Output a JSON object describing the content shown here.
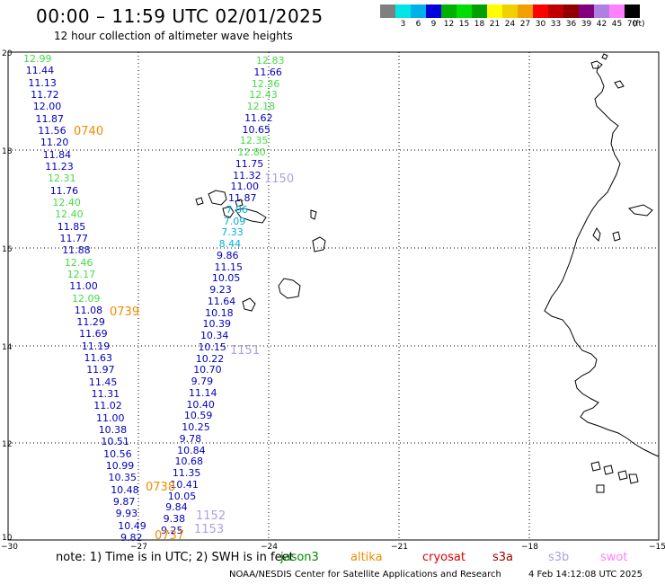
{
  "header": {
    "title": "00:00 – 11:59 UTC 02/01/2025",
    "subtitle": "12 hour collection of altimeter wave heights"
  },
  "colorbar": {
    "colors": [
      "#7f7f7f",
      "#00e5e5",
      "#00b0e8",
      "#0000dd",
      "#00b000",
      "#00dd00",
      "#00a000",
      "#ffff00",
      "#f0d000",
      "#f0a000",
      "#ff0000",
      "#c00000",
      "#900000",
      "#800080",
      "#b080e0",
      "#ff80ff",
      "#000000"
    ],
    "labels": [
      "3",
      "6",
      "9",
      "12",
      "15",
      "18",
      "21",
      "24",
      "27",
      "30",
      "33",
      "36",
      "39",
      "42",
      "45",
      "70"
    ],
    "unit": "(ft)"
  },
  "axes": {
    "x_labels": [
      "−30",
      "−27",
      "−24",
      "−21",
      "−18",
      "−15"
    ],
    "y_labels": [
      "20",
      "18",
      "16",
      "14",
      "12",
      "10"
    ]
  },
  "tracks": {
    "colors": {
      "blue": "#0000bb",
      "green": "#44dd44",
      "cyan": "#00b0d8",
      "orange": "#f08c00",
      "lavender": "#b0a0e0"
    },
    "west": [
      {
        "v": "12.99",
        "c": "green"
      },
      {
        "v": "11.44",
        "c": "blue"
      },
      {
        "v": "11.13",
        "c": "blue"
      },
      {
        "v": "11.72",
        "c": "blue"
      },
      {
        "v": "12.00",
        "c": "blue"
      },
      {
        "v": "11.87",
        "c": "blue"
      },
      {
        "v": "11.56",
        "c": "blue"
      },
      {
        "v": "11.20",
        "c": "blue"
      },
      {
        "v": "11.84",
        "c": "blue"
      },
      {
        "v": "11.23",
        "c": "blue"
      },
      {
        "v": "12.31",
        "c": "green"
      },
      {
        "v": "11.76",
        "c": "blue"
      },
      {
        "v": "12.40",
        "c": "green"
      },
      {
        "v": "12.40",
        "c": "green"
      },
      {
        "v": "11.85",
        "c": "blue"
      },
      {
        "v": "11.77",
        "c": "blue"
      },
      {
        "v": "11.88",
        "c": "blue"
      },
      {
        "v": "12.46",
        "c": "green"
      },
      {
        "v": "12.17",
        "c": "green"
      },
      {
        "v": "11.00",
        "c": "blue"
      },
      {
        "v": "12.09",
        "c": "green"
      },
      {
        "v": "11.08",
        "c": "blue"
      },
      {
        "v": "11.29",
        "c": "blue"
      },
      {
        "v": "11.69",
        "c": "blue"
      },
      {
        "v": "11.19",
        "c": "blue"
      },
      {
        "v": "11.63",
        "c": "blue"
      },
      {
        "v": "11.97",
        "c": "blue"
      },
      {
        "v": "11.45",
        "c": "blue"
      },
      {
        "v": "11.31",
        "c": "blue"
      },
      {
        "v": "11.02",
        "c": "blue"
      },
      {
        "v": "11.00",
        "c": "blue"
      },
      {
        "v": "10.38",
        "c": "blue"
      },
      {
        "v": "10.51",
        "c": "blue"
      },
      {
        "v": "10.56",
        "c": "blue"
      },
      {
        "v": "10.99",
        "c": "blue"
      },
      {
        "v": "10.35",
        "c": "blue"
      },
      {
        "v": "10.48",
        "c": "blue"
      },
      {
        "v": "9.87",
        "c": "blue"
      },
      {
        "v": "9.93",
        "c": "blue"
      },
      {
        "v": "10.49",
        "c": "blue"
      },
      {
        "v": "9.82",
        "c": "blue"
      }
    ],
    "east": [
      {
        "v": "12.83",
        "c": "green"
      },
      {
        "v": "11.66",
        "c": "blue"
      },
      {
        "v": "12.36",
        "c": "green"
      },
      {
        "v": "12.43",
        "c": "green"
      },
      {
        "v": "12.18",
        "c": "green"
      },
      {
        "v": "11.62",
        "c": "blue"
      },
      {
        "v": "10.65",
        "c": "blue"
      },
      {
        "v": "12.35",
        "c": "green"
      },
      {
        "v": "12.80",
        "c": "green"
      },
      {
        "v": "11.75",
        "c": "blue"
      },
      {
        "v": "11.32",
        "c": "blue"
      },
      {
        "v": "11.00",
        "c": "blue"
      },
      {
        "v": "11.87",
        "c": "blue"
      },
      {
        "v": "7.86",
        "c": "cyan"
      },
      {
        "v": "7.09",
        "c": "cyan"
      },
      {
        "v": "7.33",
        "c": "cyan"
      },
      {
        "v": "8.44",
        "c": "cyan"
      },
      {
        "v": "9.86",
        "c": "blue"
      },
      {
        "v": "11.15",
        "c": "blue"
      },
      {
        "v": "10.05",
        "c": "blue"
      },
      {
        "v": "9.23",
        "c": "blue"
      },
      {
        "v": "11.64",
        "c": "blue"
      },
      {
        "v": "10.18",
        "c": "blue"
      },
      {
        "v": "10.39",
        "c": "blue"
      },
      {
        "v": "10.34",
        "c": "blue"
      },
      {
        "v": "10.15",
        "c": "blue"
      },
      {
        "v": "10.22",
        "c": "blue"
      },
      {
        "v": "10.70",
        "c": "blue"
      },
      {
        "v": "9.79",
        "c": "blue"
      },
      {
        "v": "11.14",
        "c": "blue"
      },
      {
        "v": "10.40",
        "c": "blue"
      },
      {
        "v": "10.59",
        "c": "blue"
      },
      {
        "v": "10.25",
        "c": "blue"
      },
      {
        "v": "9.78",
        "c": "blue"
      },
      {
        "v": "10.84",
        "c": "blue"
      },
      {
        "v": "10.68",
        "c": "blue"
      },
      {
        "v": "11.35",
        "c": "blue"
      },
      {
        "v": "10.41",
        "c": "blue"
      },
      {
        "v": "10.05",
        "c": "blue"
      },
      {
        "v": "9.84",
        "c": "blue"
      },
      {
        "v": "9.38",
        "c": "blue"
      },
      {
        "v": "9.25",
        "c": "blue"
      }
    ],
    "time_labels": [
      {
        "v": "0740",
        "c": "orange"
      },
      {
        "v": "0739",
        "c": "orange"
      },
      {
        "v": "0738",
        "c": "orange"
      },
      {
        "v": "0737",
        "c": "orange"
      },
      {
        "v": "1150",
        "c": "lavender"
      },
      {
        "v": "1151",
        "c": "lavender"
      },
      {
        "v": "1152",
        "c": "lavender"
      },
      {
        "v": "1153",
        "c": "lavender"
      }
    ]
  },
  "footer": {
    "note": "note:  1) Time is in UTC;  2) SWH is in feet",
    "legend": [
      {
        "name": "jason3",
        "color": "#008800"
      },
      {
        "name": "altika",
        "color": "#f08c00"
      },
      {
        "name": "cryosat",
        "color": "#dd0000"
      },
      {
        "name": "s3a",
        "color": "#a00000"
      },
      {
        "name": "s3b",
        "color": "#b0a0e0"
      },
      {
        "name": "swot",
        "color": "#ff80ff"
      }
    ],
    "credit": "NOAA/NESDIS Center for Satellite Applications and Research",
    "timestamp": "4 Feb 14:12:08 UTC 2025"
  }
}
